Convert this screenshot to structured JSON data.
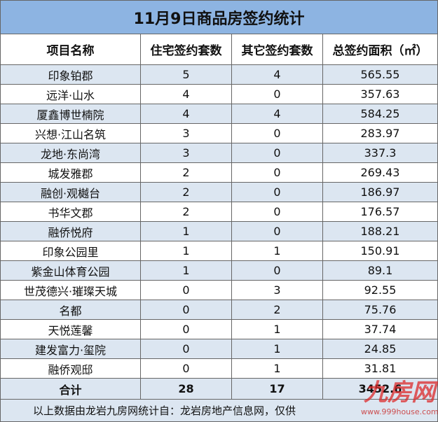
{
  "title": "11月9日商品房签约统计",
  "table": {
    "header": [
      "项目名称",
      "住宅签约套数",
      "其它签约套数",
      "总签约面积（㎡）"
    ],
    "rows": [
      [
        "印象铂郡",
        "5",
        "4",
        "565.55"
      ],
      [
        "远洋·山水",
        "4",
        "0",
        "357.63"
      ],
      [
        "厦鑫博世楠院",
        "4",
        "4",
        "584.25"
      ],
      [
        "兴想·江山名筑",
        "3",
        "0",
        "283.97"
      ],
      [
        "龙地·东尚湾",
        "3",
        "0",
        "337.3"
      ],
      [
        "城发雅郡",
        "2",
        "0",
        "269.43"
      ],
      [
        "融创·观樾台",
        "2",
        "0",
        "186.97"
      ],
      [
        "书华文郡",
        "2",
        "0",
        "176.57"
      ],
      [
        "融侨悦府",
        "1",
        "0",
        "188.21"
      ],
      [
        "印象公园里",
        "1",
        "1",
        "150.91"
      ],
      [
        "紫金山体育公园",
        "1",
        "0",
        "89.1"
      ],
      [
        "世茂德兴·璀璨天城",
        "0",
        "3",
        "92.55"
      ],
      [
        "名都",
        "0",
        "2",
        "75.76"
      ],
      [
        "天悦莲馨",
        "0",
        "1",
        "37.74"
      ],
      [
        "建发富力·玺院",
        "0",
        "1",
        "24.85"
      ],
      [
        "融侨观邸",
        "0",
        "1",
        "31.81"
      ]
    ],
    "total": [
      "合计",
      "28",
      "17",
      "3452.6"
    ]
  },
  "footer": "以上数据由龙岩九房网统计自：龙岩房地产信息网，仅供",
  "watermark": {
    "logo": "九房网",
    "url": "www.999house.com"
  }
}
